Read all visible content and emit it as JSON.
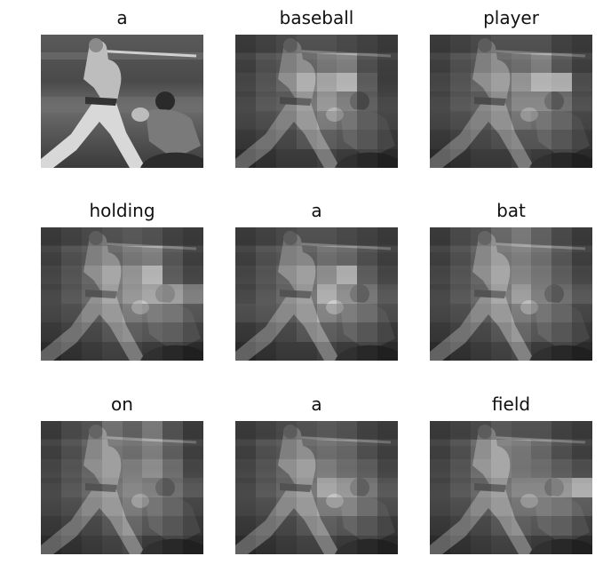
{
  "figure": {
    "panels": [
      {
        "word": "a",
        "attention": "none"
      },
      {
        "word": "baseball",
        "attention": "upper-center"
      },
      {
        "word": "player",
        "attention": "upper-right"
      },
      {
        "word": "holding",
        "attention": "center-right"
      },
      {
        "word": "a",
        "attention": "center"
      },
      {
        "word": "bat",
        "attention": "upper-center"
      },
      {
        "word": "on",
        "attention": "upper-center"
      },
      {
        "word": "a",
        "attention": "center-right"
      },
      {
        "word": "field",
        "attention": "center-right"
      }
    ],
    "colors": {
      "background": "#ffffff",
      "image_tone": "grayscale"
    }
  }
}
